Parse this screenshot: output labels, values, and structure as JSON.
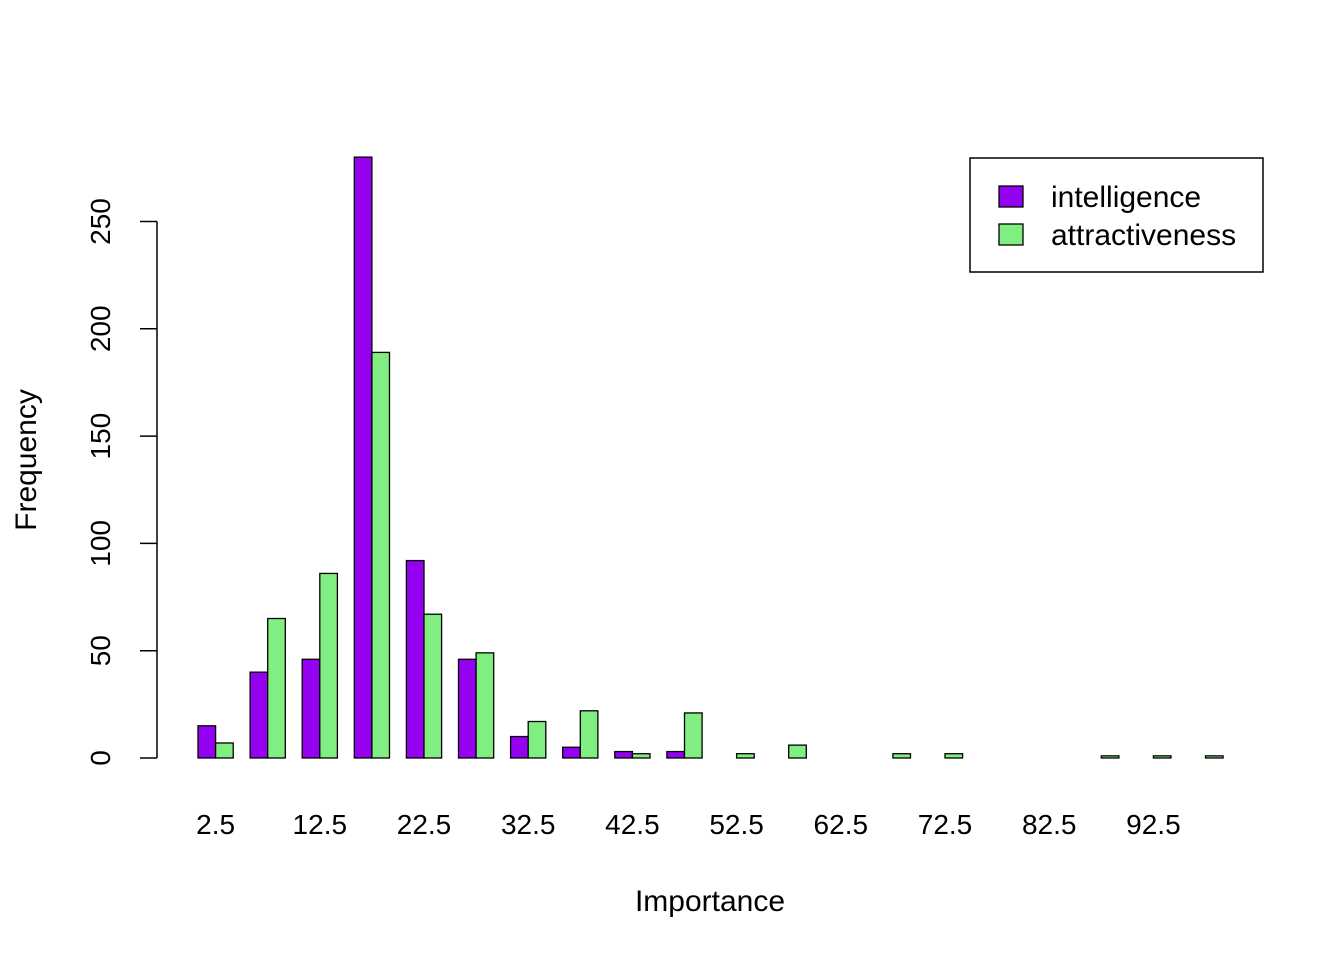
{
  "chart_data": {
    "type": "bar",
    "title": "",
    "xlabel": "Importance",
    "ylabel": "Frequency",
    "categories": [
      "2.5",
      "7.5",
      "12.5",
      "17.5",
      "22.5",
      "27.5",
      "32.5",
      "37.5",
      "42.5",
      "47.5",
      "52.5",
      "57.5",
      "62.5",
      "67.5",
      "72.5",
      "77.5",
      "82.5",
      "87.5",
      "92.5",
      "97.5"
    ],
    "x_tick_labels": [
      "2.5",
      "12.5",
      "22.5",
      "32.5",
      "42.5",
      "52.5",
      "62.5",
      "72.5",
      "82.5",
      "92.5"
    ],
    "y_ticks": [
      "0",
      "50",
      "100",
      "150",
      "200",
      "250"
    ],
    "ylim": [
      0,
      280
    ],
    "grid": false,
    "legend_position": "top-right",
    "series": [
      {
        "name": "intelligence",
        "color": "#9400f0",
        "values": [
          15,
          40,
          46,
          280,
          92,
          46,
          10,
          5,
          3,
          3,
          0,
          0,
          0,
          0,
          0,
          0,
          0,
          0,
          0,
          0
        ]
      },
      {
        "name": "attractiveness",
        "color": "#80ee80",
        "values": [
          7,
          65,
          86,
          189,
          67,
          49,
          17,
          22,
          2,
          21,
          2,
          6,
          0,
          2,
          2,
          0,
          0,
          1,
          1,
          1
        ]
      }
    ]
  }
}
